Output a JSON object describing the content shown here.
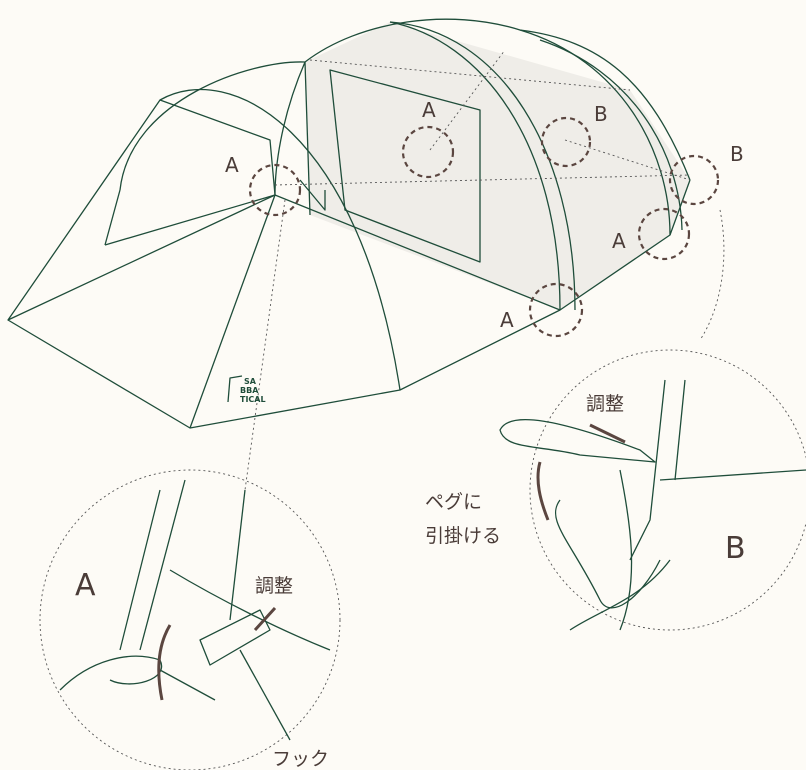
{
  "callouts": [
    "A",
    "A",
    "B",
    "B",
    "A",
    "A"
  ],
  "logo": [
    "SA",
    "BBA",
    "TICAL"
  ],
  "details": {
    "a": {
      "label": "A",
      "adjust": "調整",
      "hook": "フック"
    },
    "b": {
      "label": "B",
      "adjust": "調整",
      "peg": [
        "ペグに",
        "引掛ける"
      ]
    }
  }
}
